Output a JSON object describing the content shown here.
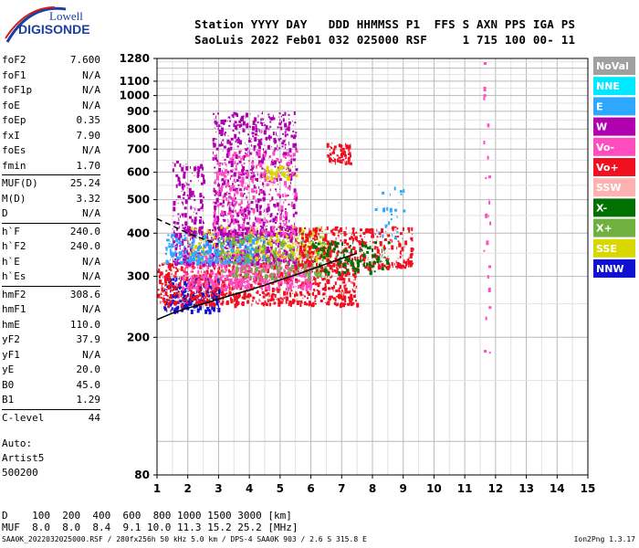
{
  "logo": {
    "line1": "Lowell",
    "line2": "DIGISONDE"
  },
  "header": {
    "line1": "Station YYYY DAY   DDD HHMMSS P1  FFS S AXN PPS IGA PS",
    "line2": "SaoLuis 2022 Feb01 032 025000 RSF     1 715 100 00- 11"
  },
  "params": [
    [
      {
        "k": "foF2",
        "v": "7.600"
      },
      {
        "k": "foF1",
        "v": "N/A"
      },
      {
        "k": "foF1p",
        "v": "N/A"
      },
      {
        "k": "foE",
        "v": "N/A"
      },
      {
        "k": "foEp",
        "v": "0.35"
      },
      {
        "k": "fxI",
        "v": "7.90"
      },
      {
        "k": "foEs",
        "v": "N/A"
      },
      {
        "k": "fmin",
        "v": "1.70"
      }
    ],
    [
      {
        "k": "MUF(D)",
        "v": "25.24"
      },
      {
        "k": "M(D)",
        "v": "3.32"
      },
      {
        "k": "D",
        "v": "N/A"
      }
    ],
    [
      {
        "k": "h`F",
        "v": "240.0"
      },
      {
        "k": "h`F2",
        "v": "240.0"
      },
      {
        "k": "h`E",
        "v": "N/A"
      },
      {
        "k": "h`Es",
        "v": "N/A"
      }
    ],
    [
      {
        "k": "hmF2",
        "v": "308.6"
      },
      {
        "k": "hmF1",
        "v": "N/A"
      },
      {
        "k": "hmE",
        "v": "110.0"
      },
      {
        "k": "yF2",
        "v": "37.9"
      },
      {
        "k": "yF1",
        "v": "N/A"
      },
      {
        "k": "yE",
        "v": "20.0"
      },
      {
        "k": "B0",
        "v": "45.0"
      },
      {
        "k": "B1",
        "v": "1.29"
      }
    ],
    [
      {
        "k": "C-level",
        "v": "44"
      }
    ]
  ],
  "auto": {
    "line1": "Auto:",
    "line2": "Artist5",
    "line3": "500200"
  },
  "footer": {
    "line1": "D    100  200  400  600  800 1000 1500 3000 [km]",
    "line2": "MUF  8.0  8.0  8.4  9.1 10.0 11.3 15.2 25.2 [MHz]"
  },
  "bottom_line": "SAA0K_2022032025000.RSF / 280fx256h 50 kHz 5.0 km / DPS-4 SAA0K 903 / 2.6 S 315.8 E",
  "version": "Ion2Png 1.3.17",
  "legend": [
    {
      "label": "NoVal",
      "color": "#a0a0a0"
    },
    {
      "label": "NNE",
      "color": "#00e8ff"
    },
    {
      "label": "E",
      "color": "#2ea8ff"
    },
    {
      "label": "W",
      "color": "#b000b0"
    },
    {
      "label": "Vo-",
      "color": "#ff4cc0"
    },
    {
      "label": "Vo+",
      "color": "#f01020"
    },
    {
      "label": "SSW",
      "color": "#ffb0b0"
    },
    {
      "label": "X-",
      "color": "#007000"
    },
    {
      "label": "X+",
      "color": "#70b040"
    },
    {
      "label": "SSE",
      "color": "#d8d800"
    },
    {
      "label": "NNW",
      "color": "#1010d0"
    }
  ],
  "chart_data": {
    "type": "scatter",
    "title": "",
    "xlabel": "",
    "ylabel": "",
    "xlim": [
      1,
      15
    ],
    "ylim": [
      80,
      1280
    ],
    "y_scale": "log",
    "x_ticks": [
      1,
      2,
      3,
      4,
      5,
      6,
      7,
      8,
      9,
      10,
      11,
      12,
      13,
      14,
      15
    ],
    "y_ticks": [
      80,
      200,
      300,
      400,
      500,
      600,
      700,
      800,
      900,
      1000,
      1100,
      1280
    ],
    "grid": true,
    "legend_position": "right",
    "profile_trace_points": [
      [
        1,
        225
      ],
      [
        1.5,
        235
      ],
      [
        2,
        243
      ],
      [
        2.5,
        250
      ],
      [
        3,
        258
      ],
      [
        3.5,
        266
      ],
      [
        4,
        274
      ],
      [
        4.5,
        283
      ],
      [
        5,
        293
      ],
      [
        5.5,
        303
      ],
      [
        6,
        314
      ],
      [
        6.5,
        326
      ],
      [
        7,
        338
      ],
      [
        7.5,
        350
      ]
    ],
    "upper_trace_points": [
      [
        1,
        440
      ],
      [
        1.5,
        420
      ],
      [
        2,
        400
      ],
      [
        2.5,
        385
      ],
      [
        3,
        372
      ]
    ],
    "clusters": [
      {
        "fmin": 1.2,
        "fmax": 3.0,
        "hmin": 240,
        "hmax": 300,
        "series": "NNW",
        "n": 250
      },
      {
        "fmin": 1.0,
        "fmax": 7.5,
        "hmin": 250,
        "hmax": 330,
        "series": "Vo+",
        "n": 900
      },
      {
        "fmin": 1.8,
        "fmax": 6.0,
        "hmin": 280,
        "hmax": 360,
        "series": "Vo-",
        "n": 600
      },
      {
        "fmin": 1.5,
        "fmax": 5.5,
        "hmin": 330,
        "hmax": 420,
        "series": "W",
        "n": 500
      },
      {
        "fmin": 2.0,
        "fmax": 6.5,
        "hmin": 340,
        "hmax": 420,
        "series": "SSE",
        "n": 300
      },
      {
        "fmin": 1.2,
        "fmax": 4.5,
        "hmin": 330,
        "hmax": 400,
        "series": "E",
        "n": 250
      },
      {
        "fmin": 3.0,
        "fmax": 6.5,
        "hmin": 300,
        "hmax": 400,
        "series": "X+",
        "n": 250
      },
      {
        "fmin": 5.5,
        "fmax": 9.3,
        "hmin": 320,
        "hmax": 420,
        "series": "Vo+",
        "n": 450
      },
      {
        "fmin": 6.0,
        "fmax": 8.5,
        "hmin": 310,
        "hmax": 380,
        "series": "X-",
        "n": 150
      },
      {
        "fmin": 2.8,
        "fmax": 5.5,
        "hmin": 400,
        "hmax": 900,
        "series": "W",
        "n": 700
      },
      {
        "fmin": 2.8,
        "fmax": 5.5,
        "hmin": 400,
        "hmax": 700,
        "series": "Vo-",
        "n": 300
      },
      {
        "fmin": 4.5,
        "fmax": 5.5,
        "hmin": 580,
        "hmax": 630,
        "series": "SSE",
        "n": 40
      },
      {
        "fmin": 6.5,
        "fmax": 7.3,
        "hmin": 640,
        "hmax": 730,
        "series": "Vo+",
        "n": 80
      },
      {
        "fmin": 1.5,
        "fmax": 2.5,
        "hmin": 400,
        "hmax": 650,
        "series": "W",
        "n": 150
      },
      {
        "fmin": 8.0,
        "fmax": 9.0,
        "hmin": 390,
        "hmax": 560,
        "series": "E",
        "n": 30
      },
      {
        "fmin": 11.6,
        "fmax": 11.8,
        "hmin": 170,
        "hmax": 1280,
        "series": "Vo-",
        "n": 25
      }
    ]
  }
}
